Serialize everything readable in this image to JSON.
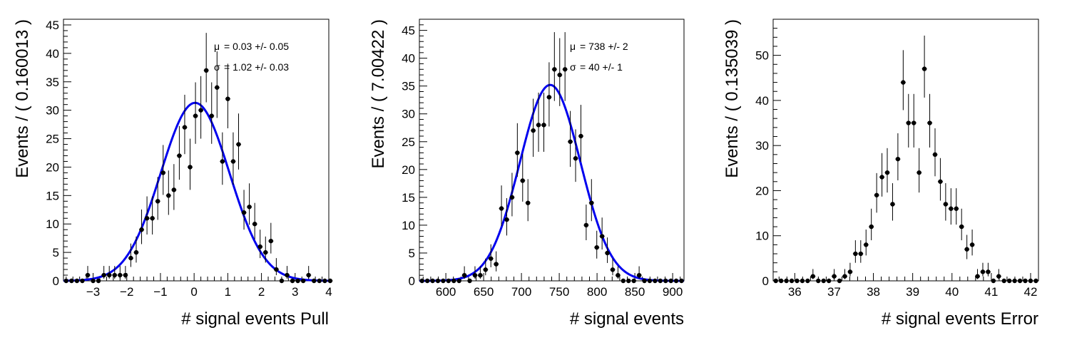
{
  "chart_data": [
    {
      "type": "scatter",
      "xlabel": "# signal events Pull",
      "ylabel": "Events / ( 0.160013 )",
      "xlim": [
        -3.88,
        4.0
      ],
      "ylim": [
        0,
        46
      ],
      "xticks": [
        -3,
        -2,
        -1,
        0,
        1,
        2,
        3,
        4
      ],
      "yticks": [
        0,
        5,
        10,
        15,
        20,
        25,
        30,
        35,
        40,
        45
      ],
      "bin_start": -3.88,
      "bin_width": 0.160013,
      "y": [
        0,
        0,
        0,
        0,
        1,
        0,
        0,
        1,
        1,
        1,
        1,
        1,
        4,
        5,
        9,
        11,
        11,
        14,
        19,
        15,
        16,
        22,
        27,
        20,
        29,
        30,
        37,
        29,
        34,
        21,
        32,
        21,
        24,
        12,
        13,
        10,
        6,
        5,
        7,
        2,
        0,
        1,
        0,
        0,
        0,
        1,
        0,
        0,
        0,
        0
      ],
      "fit": {
        "type": "gaussian",
        "mean": 0.03,
        "sigma": 1.02,
        "peak": 31.3,
        "color": "#0000ee"
      },
      "annotations": [
        {
          "symbol": "μ",
          "text": "0.03 +/- 0.05"
        },
        {
          "symbol": "σ",
          "text": "1.02 +/- 0.03"
        }
      ]
    },
    {
      "type": "scatter",
      "xlabel": "# signal events",
      "ylabel": "Events / ( 7.00422 )",
      "xlim": [
        565,
        915
      ],
      "ylim": [
        0,
        47
      ],
      "xticks": [
        600,
        650,
        700,
        750,
        800,
        850,
        900
      ],
      "yticks": [
        0,
        5,
        10,
        15,
        20,
        25,
        30,
        35,
        40,
        45
      ],
      "bin_start": 565,
      "bin_width": 7.00422,
      "y": [
        0,
        0,
        0,
        0,
        0,
        0,
        0,
        0,
        1,
        0,
        1,
        1,
        2,
        4,
        3,
        13,
        11,
        15,
        23,
        18,
        14,
        27,
        28,
        28,
        33,
        38,
        37,
        38,
        25,
        22,
        26,
        10,
        14,
        6,
        8,
        5,
        2,
        1,
        0,
        0,
        0,
        1,
        0,
        0,
        0,
        0,
        0,
        0,
        0,
        0
      ],
      "fit": {
        "type": "gaussian",
        "mean": 738,
        "sigma": 40,
        "peak": 35.2,
        "color": "#0000ee"
      },
      "annotations": [
        {
          "symbol": "μ",
          "text": "738 +/- 2"
        },
        {
          "symbol": "σ",
          "text": "40 +/- 1"
        }
      ]
    },
    {
      "type": "scatter",
      "xlabel": "# signal events Error",
      "ylabel": "Events / ( 0.135039 )",
      "xlim": [
        35.45,
        42.2
      ],
      "ylim": [
        0,
        58
      ],
      "xticks": [
        36,
        37,
        38,
        39,
        40,
        41,
        42
      ],
      "yticks": [
        0,
        10,
        20,
        30,
        40,
        50
      ],
      "bin_start": 35.45,
      "bin_width": 0.135039,
      "y": [
        0,
        0,
        0,
        0,
        0,
        0,
        0,
        1,
        0,
        0,
        0,
        1,
        0,
        1,
        2,
        6,
        6,
        8,
        12,
        19,
        23,
        24,
        17,
        27,
        44,
        35,
        35,
        24,
        47,
        35,
        28,
        22,
        17,
        16,
        16,
        12,
        7,
        8,
        1,
        2,
        2,
        0,
        1,
        0,
        0,
        0,
        0,
        0,
        0,
        0
      ],
      "fit": null,
      "annotations": []
    }
  ]
}
